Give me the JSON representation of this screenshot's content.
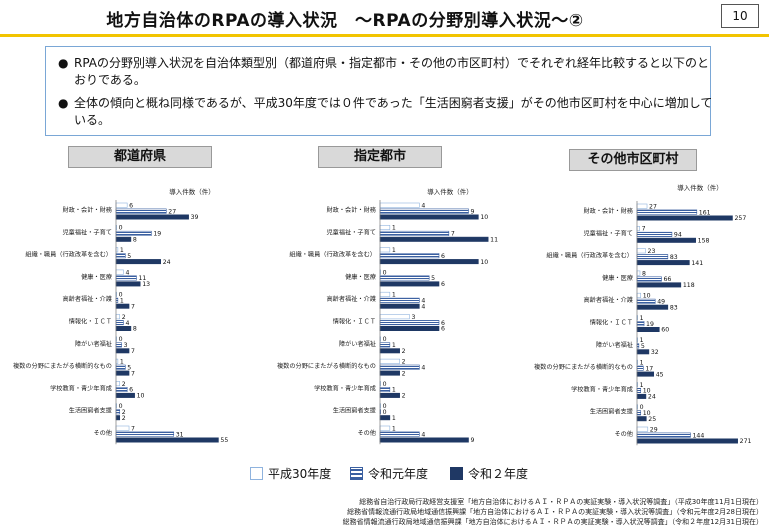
{
  "header": {
    "title": "地方自治体のRPAの導入状況　～RPAの分野別導入状況～②",
    "page_number": "10"
  },
  "summary": {
    "bullet": "●",
    "items": [
      "RPAの分野別導入状況を自治体類型別（都道府県・指定都市・その他の市区町村）でそれぞれ経年比較すると以下のとおりである。",
      "全体の傾向と概ね同様であるが、平成30年度では０件であった「生活困窮者支援」がその他市区町村を中心に増加している。"
    ]
  },
  "colors": {
    "h30_fill": "#ffffff",
    "h30_stroke": "#8fb3de",
    "r1_fill": "#ffffff",
    "r1_stroke": "#3a5fa0",
    "r2_fill": "#1f3864",
    "accent": "#f2c400"
  },
  "legend": [
    "平成30年度",
    "令和元年度",
    "令和２年度"
  ],
  "chart_data": [
    {
      "type": "bar",
      "orientation": "horizontal",
      "title": "都道府県",
      "unit_label": "導入件数（件）",
      "categories": [
        "財政・会計・財務",
        "児童福祉・子育て",
        "組織・職員（行政改革を含む）",
        "健康・医療",
        "高齢者福祉・介護",
        "情報化・ＩＣＴ",
        "障がい者福祉",
        "複数の分野にまたがる横断的なもの",
        "学校教育・青少年育成",
        "生活困窮者支援",
        "その他"
      ],
      "series": [
        {
          "name": "平成30年度",
          "values": [
            6,
            0,
            1,
            4,
            0,
            2,
            0,
            1,
            2,
            0,
            7
          ]
        },
        {
          "name": "令和元年度",
          "values": [
            27,
            19,
            5,
            11,
            1,
            4,
            3,
            5,
            6,
            2,
            31
          ]
        },
        {
          "name": "令和２年度",
          "values": [
            39,
            8,
            24,
            13,
            7,
            8,
            7,
            7,
            10,
            2,
            55
          ]
        }
      ],
      "xlim": [
        0,
        58
      ]
    },
    {
      "type": "bar",
      "orientation": "horizontal",
      "title": "指定都市",
      "unit_label": "導入件数（件）",
      "categories": [
        "財政・会計・財務",
        "児童福祉・子育て",
        "組織・職員（行政改革を含む）",
        "健康・医療",
        "高齢者福祉・介護",
        "情報化・ＩＣＴ",
        "障がい者福祉",
        "複数の分野にまたがる横断的なもの",
        "学校教育・青少年育成",
        "生活困窮者支援",
        "その他"
      ],
      "series": [
        {
          "name": "平成30年度",
          "values": [
            4,
            1,
            1,
            0,
            1,
            3,
            0,
            2,
            0,
            0,
            1
          ]
        },
        {
          "name": "令和元年度",
          "values": [
            9,
            7,
            6,
            5,
            4,
            6,
            1,
            4,
            1,
            0,
            4
          ]
        },
        {
          "name": "令和２年度",
          "values": [
            10,
            11,
            10,
            6,
            4,
            6,
            2,
            2,
            2,
            1,
            9
          ]
        }
      ],
      "xlim": [
        0,
        12
      ]
    },
    {
      "type": "bar",
      "orientation": "horizontal",
      "title": "その他市区町村",
      "unit_label": "導入件数（件）",
      "categories": [
        "財政・会計・財務",
        "児童福祉・子育て",
        "組織・職員（行政改革を含む）",
        "健康・医療",
        "高齢者福祉・介護",
        "情報化・ＩＣＴ",
        "障がい者福祉",
        "複数の分野にまたがる横断的なもの",
        "学校教育・青少年育成",
        "生活困窮者支援",
        "その他"
      ],
      "series": [
        {
          "name": "平成30年度",
          "values": [
            27,
            7,
            23,
            8,
            10,
            1,
            1,
            1,
            1,
            0,
            29
          ]
        },
        {
          "name": "令和元年度",
          "values": [
            161,
            94,
            83,
            66,
            49,
            19,
            5,
            17,
            10,
            10,
            144
          ]
        },
        {
          "name": "令和２年度",
          "values": [
            257,
            158,
            141,
            118,
            83,
            60,
            32,
            45,
            24,
            25,
            271
          ]
        }
      ],
      "xlim": [
        0,
        280
      ]
    }
  ],
  "sources": [
    "総務省自治行政局行政経営支援室「地方自治体におけるＡＩ・ＲＰＡの実証実験・導入状況等調査」（平成30年度11月1日現在）",
    "総務省情報流通行政局地域通信振興課「地方自治体におけるＡＩ・ＲＰＡの実証実験・導入状況等調査」（令和元年度2月28日現在）",
    "総務省情報流通行政局地域通信振興課「地方自治体におけるＡＩ・ＲＰＡの実証実験・導入状況等調査」（令和２年度12月31日現在）"
  ]
}
